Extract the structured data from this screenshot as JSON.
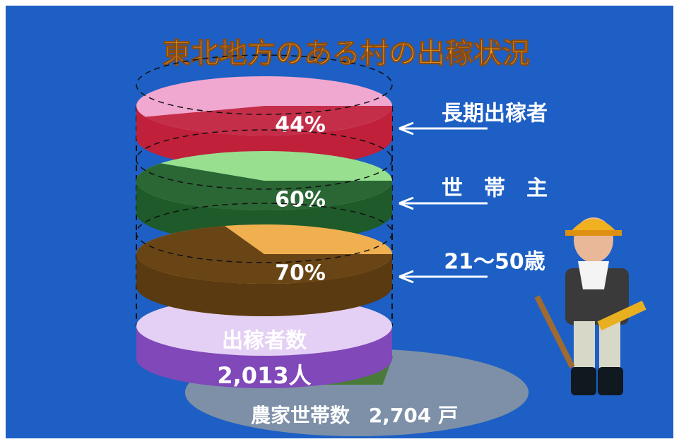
{
  "chart_data": {
    "type": "pie-stack",
    "title": "東北地方のある村の出稼状況",
    "categories": [
      "長期出稼者",
      "世　帯　主",
      "21〜50歳"
    ],
    "values": [
      44,
      60,
      70
    ],
    "value_labels": [
      "44%",
      "60%",
      "70%"
    ],
    "colors": [
      "#c0203a",
      "#1e5a2a",
      "#5a3a10"
    ],
    "top_colors": [
      "#f0a8d0",
      "#98e090",
      "#f0b050"
    ],
    "base": {
      "label": "出稼者数",
      "value": 2013,
      "value_label": "2,013人",
      "color": "#8048b8",
      "top_color": "#e4d0f4"
    },
    "ground": {
      "label": "農家世帯数",
      "value": 2704,
      "value_label": "2,704 戸",
      "color": "#7d90a8"
    }
  }
}
